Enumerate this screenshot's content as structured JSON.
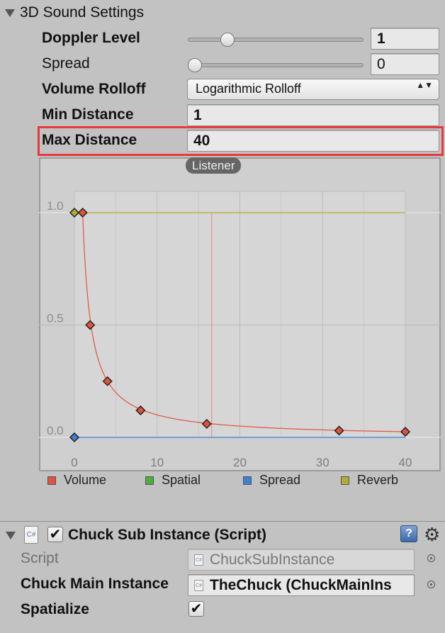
{
  "section": {
    "title": "3D Sound Settings"
  },
  "doppler": {
    "label": "Doppler Level",
    "value": "1",
    "slider_fraction": 0.2
  },
  "spread": {
    "label": "Spread",
    "value": "0",
    "slider_fraction": 0.0
  },
  "rolloff": {
    "label": "Volume Rolloff",
    "value": "Logarithmic Rolloff",
    "arrows": "▲▼"
  },
  "min_distance": {
    "label": "Min Distance",
    "value": "1"
  },
  "max_distance": {
    "label": "Max Distance",
    "value": "40"
  },
  "graph": {
    "listener_label": "Listener",
    "listener_x": 16.6,
    "x_ticks": [
      "0",
      "10",
      "20",
      "30",
      "40"
    ],
    "y_ticks": [
      "0.0",
      "0.5",
      "1.0"
    ],
    "x_range": [
      0,
      40
    ],
    "y_range": [
      0,
      1
    ],
    "volume_keys": [
      [
        1,
        1
      ],
      [
        1.9,
        0.5
      ],
      [
        4,
        0.25
      ],
      [
        8,
        0.12
      ],
      [
        16,
        0.06
      ],
      [
        32,
        0.03
      ],
      [
        40,
        0.025
      ]
    ],
    "reverb_keys": [
      [
        0,
        1
      ]
    ],
    "spread_keys": [
      [
        0,
        0
      ]
    ],
    "legend": [
      {
        "label": "Volume",
        "color": "#e0533f"
      },
      {
        "label": "Spatial",
        "color": "#4cae3d"
      },
      {
        "label": "Spread",
        "color": "#3f7fd6"
      },
      {
        "label": "Reverb",
        "color": "#b2ac34"
      }
    ],
    "colors": {
      "volume": "#e0533f",
      "reverb": "#b2ac34",
      "spread": "#3f7fd6",
      "listener": "#ef8d8d"
    }
  },
  "component": {
    "title": "Chuck Sub Instance (Script)",
    "script_icon_text": "C#",
    "enabled_check": "✔",
    "help_symbol": "?",
    "gear_symbol": "⚙",
    "script_label": "Script",
    "script_value": "ChuckSubInstance",
    "main_label": "Chuck Main Instance",
    "main_value": "TheChuck (ChuckMainIns",
    "spatialize_label": "Spatialize",
    "spatialize_check": "✔"
  }
}
